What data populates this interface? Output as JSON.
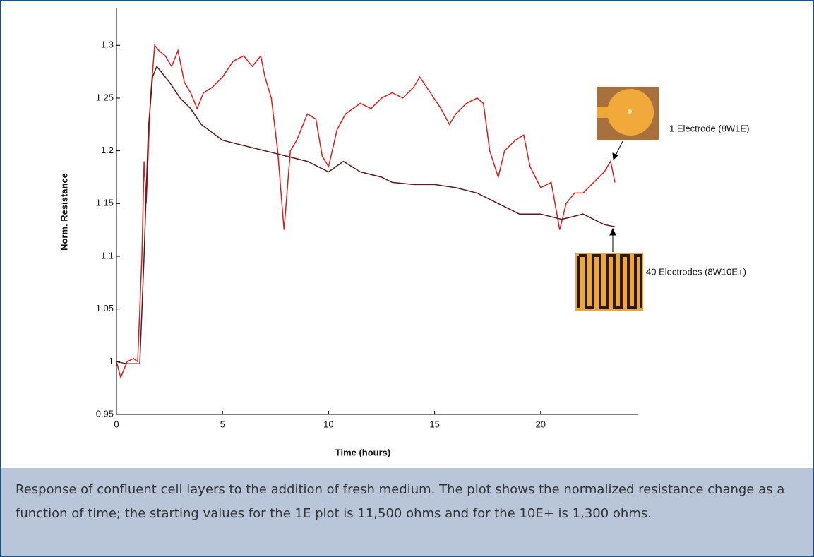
{
  "chart_data": {
    "type": "line",
    "x_label": "Time (hours)",
    "y_label": "Norm. Resistance",
    "xlim": [
      0,
      24.6
    ],
    "xticks": [
      0,
      5,
      10,
      15,
      20
    ],
    "ylim": [
      0.95,
      1.335
    ],
    "yticks": [
      0.95,
      1,
      1.05,
      1.1,
      1.15,
      1.2,
      1.25,
      1.3
    ],
    "series": [
      {
        "name": "1 Electrode (8W1E)",
        "color": "#d42020",
        "x": [
          0,
          0.2,
          0.5,
          0.8,
          1.0,
          1.2,
          1.3,
          1.4,
          1.6,
          1.8,
          2.0,
          2.3,
          2.6,
          2.9,
          3.2,
          3.5,
          3.8,
          4.1,
          4.5,
          5,
          5.5,
          6,
          6.4,
          6.8,
          7.0,
          7.3,
          7.6,
          7.9,
          8.2,
          8.5,
          9,
          9.4,
          9.7,
          10,
          10.4,
          10.8,
          11.5,
          12,
          12.5,
          13,
          13.5,
          14,
          14.3,
          14.8,
          15.3,
          15.7,
          16,
          16.5,
          17,
          17.3,
          17.6,
          18,
          18.3,
          18.8,
          19.2,
          19.5,
          20,
          20.5,
          20.9,
          21.2,
          21.6,
          22,
          22.5,
          23,
          23.3,
          23.5
        ],
        "values": [
          1.0,
          0.985,
          1.0,
          1.003,
          1.0,
          1.1,
          1.19,
          1.15,
          1.25,
          1.3,
          1.295,
          1.29,
          1.28,
          1.295,
          1.265,
          1.255,
          1.24,
          1.255,
          1.26,
          1.27,
          1.285,
          1.29,
          1.28,
          1.29,
          1.27,
          1.25,
          1.2,
          1.125,
          1.2,
          1.21,
          1.235,
          1.23,
          1.195,
          1.185,
          1.22,
          1.235,
          1.245,
          1.24,
          1.25,
          1.255,
          1.25,
          1.26,
          1.27,
          1.255,
          1.24,
          1.225,
          1.235,
          1.245,
          1.25,
          1.245,
          1.2,
          1.175,
          1.2,
          1.21,
          1.215,
          1.185,
          1.165,
          1.17,
          1.125,
          1.15,
          1.16,
          1.16,
          1.17,
          1.18,
          1.19,
          1.17
        ]
      },
      {
        "name": "40 Electrodes (8W10E+)",
        "color": "#5a1a1a",
        "x": [
          0,
          0.5,
          1.1,
          1.3,
          1.5,
          1.7,
          1.9,
          2.5,
          3,
          3.5,
          4,
          5,
          6,
          7,
          8,
          9,
          10,
          10.7,
          11.5,
          12.5,
          13,
          14,
          15,
          16,
          17,
          18,
          19,
          20,
          21,
          22,
          23,
          23.5
        ],
        "values": [
          1.0,
          0.998,
          0.998,
          1.1,
          1.22,
          1.27,
          1.28,
          1.265,
          1.25,
          1.24,
          1.225,
          1.21,
          1.205,
          1.2,
          1.195,
          1.19,
          1.18,
          1.19,
          1.18,
          1.175,
          1.17,
          1.168,
          1.168,
          1.165,
          1.16,
          1.15,
          1.14,
          1.14,
          1.135,
          1.14,
          1.13,
          1.128
        ]
      }
    ],
    "caption": "Response of confluent cell layers to the addition of fresh medium. The plot shows the normalized resistance change as a function of time; the starting values for the 1E plot is 11,500 ohms and for the 10E+ is 1,300 ohms."
  }
}
